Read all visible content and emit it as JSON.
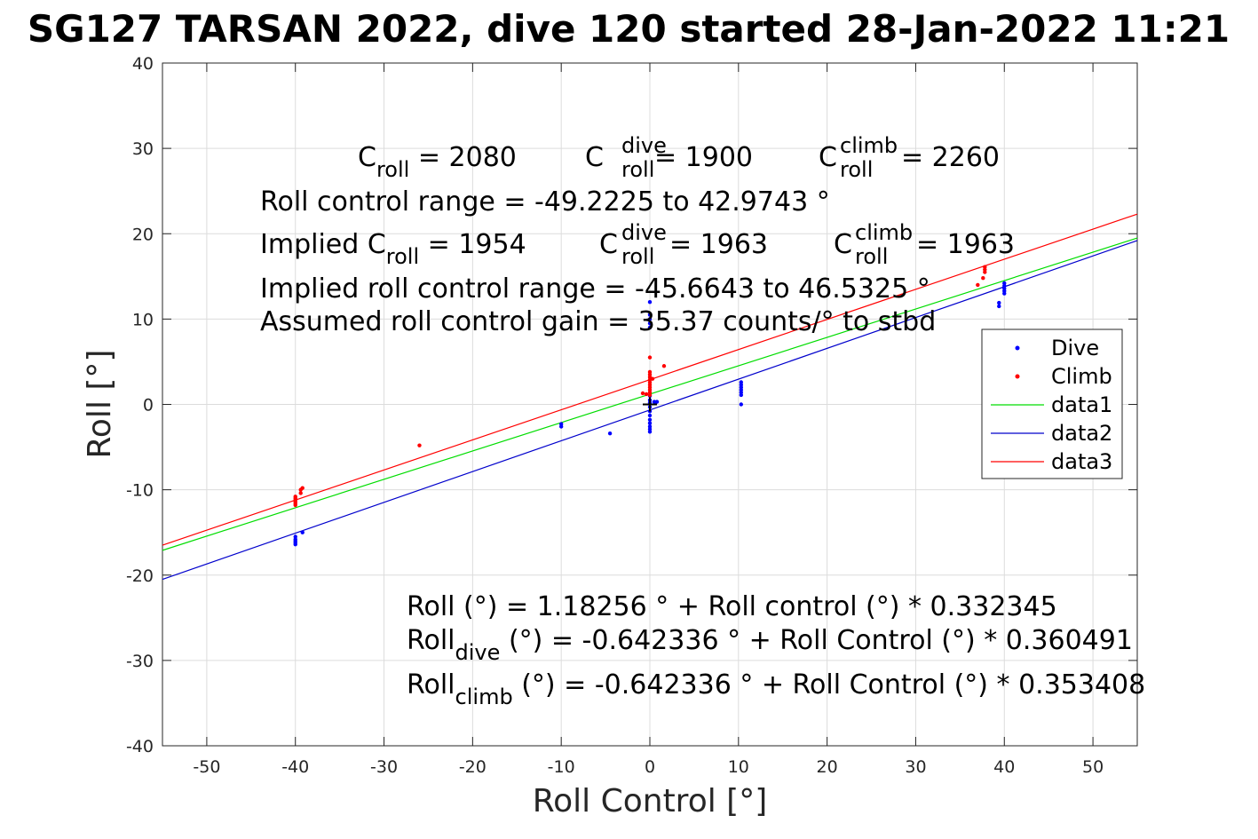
{
  "chart_data": {
    "type": "scatter",
    "title": "SG127 TARSAN 2022, dive 120 started 28-Jan-2022 11:21",
    "xlabel": "Roll Control [°]",
    "ylabel": "Roll [°]",
    "xlim": [
      -55,
      55
    ],
    "ylim": [
      -40,
      40
    ],
    "xticks": [
      "-50",
      "-40",
      "-30",
      "-20",
      "-10",
      "0",
      "10",
      "20",
      "30",
      "40",
      "50"
    ],
    "yticks": [
      "-40",
      "-30",
      "-20",
      "-10",
      "0",
      "10",
      "20",
      "30",
      "40"
    ],
    "grid": true,
    "legend_position": "right",
    "series": [
      {
        "name": "Dive",
        "kind": "points",
        "color": "#0000ff",
        "points": [
          [
            -40,
            -15.5
          ],
          [
            -40,
            -15.8
          ],
          [
            -40,
            -16.0
          ],
          [
            -40,
            -16.2
          ],
          [
            -40,
            -16.4
          ],
          [
            -39.2,
            -15.0
          ],
          [
            -10,
            -2.3
          ],
          [
            -10,
            -2.6
          ],
          [
            -4.5,
            -3.4
          ],
          [
            0,
            12.0
          ],
          [
            0,
            10.5
          ],
          [
            0,
            10.0
          ],
          [
            0,
            9.5
          ],
          [
            0,
            9.0
          ],
          [
            0,
            1.0
          ],
          [
            0,
            0.5
          ],
          [
            0,
            0.2
          ],
          [
            0,
            -0.3
          ],
          [
            0,
            -0.8
          ],
          [
            0,
            -1.3
          ],
          [
            0,
            -1.8
          ],
          [
            0,
            -2.2
          ],
          [
            0,
            -2.6
          ],
          [
            0,
            -2.9
          ],
          [
            0,
            -3.2
          ],
          [
            0.5,
            0.3
          ],
          [
            0.8,
            0.3
          ],
          [
            10.3,
            2.6
          ],
          [
            10.3,
            2.3
          ],
          [
            10.3,
            2.0
          ],
          [
            10.3,
            1.7
          ],
          [
            10.3,
            1.4
          ],
          [
            10.3,
            1.1
          ],
          [
            10.3,
            0.0
          ],
          [
            39.4,
            11.9
          ],
          [
            39.4,
            11.5
          ],
          [
            40,
            14.2
          ],
          [
            40,
            13.9
          ],
          [
            40,
            13.6
          ],
          [
            40,
            13.3
          ],
          [
            40,
            13.0
          ]
        ]
      },
      {
        "name": "Climb",
        "kind": "points",
        "color": "#ff0000",
        "points": [
          [
            -40,
            -10.8
          ],
          [
            -40,
            -11.0
          ],
          [
            -40,
            -11.2
          ],
          [
            -40,
            -11.4
          ],
          [
            -40,
            -11.6
          ],
          [
            -40,
            -11.8
          ],
          [
            -39.4,
            -10.0
          ],
          [
            -39.4,
            -10.4
          ],
          [
            -39.2,
            -9.8
          ],
          [
            -26,
            -4.8
          ],
          [
            -0.8,
            1.3
          ],
          [
            -0.4,
            1.2
          ],
          [
            0,
            5.5
          ],
          [
            0,
            3.8
          ],
          [
            0,
            3.5
          ],
          [
            0,
            3.2
          ],
          [
            0,
            2.9
          ],
          [
            0,
            2.6
          ],
          [
            0,
            2.3
          ],
          [
            0,
            2.0
          ],
          [
            0,
            1.7
          ],
          [
            0,
            1.4
          ],
          [
            0,
            1.1
          ],
          [
            0.3,
            3.0
          ],
          [
            1.6,
            4.5
          ],
          [
            37,
            14.0
          ],
          [
            37.6,
            14.8
          ],
          [
            37.8,
            15.5
          ],
          [
            37.8,
            15.8
          ],
          [
            37.8,
            16.1
          ]
        ]
      },
      {
        "name": "data1",
        "kind": "line",
        "color": "#00dd00",
        "points": [
          [
            -55,
            -17.1
          ],
          [
            55,
            19.5
          ]
        ]
      },
      {
        "name": "data2",
        "kind": "line",
        "color": "#0000cc",
        "points": [
          [
            -55,
            -20.5
          ],
          [
            55,
            19.2
          ]
        ]
      },
      {
        "name": "data3",
        "kind": "line",
        "color": "#ff0000",
        "points": [
          [
            -55,
            -16.5
          ],
          [
            55,
            22.3
          ]
        ]
      }
    ],
    "marker": {
      "type": "plus",
      "point": [
        0,
        0
      ],
      "color": "#000000"
    }
  },
  "annotations": {
    "line1": {
      "a_main": "C",
      "a_sub": "roll",
      "a_rest": " = 2080",
      "b_main": "C",
      "b_sup": "dive",
      "b_sub": "roll",
      "b_rest": " = 1900",
      "c_main": "C",
      "c_sup": "climb",
      "c_sub": "roll",
      "c_rest": " = 2260"
    },
    "line2": "Roll control range = -49.2225 to 42.9743 °",
    "line3": {
      "a_main": "Implied C",
      "a_sub": "roll",
      "a_rest": " = 1954",
      "b_main": "C",
      "b_sup": "dive",
      "b_sub": "roll",
      "b_rest": " = 1963",
      "c_main": "C",
      "c_sup": "climb",
      "c_sub": "roll",
      "c_rest": " = 1963"
    },
    "line4": "Implied roll control range = -45.6643 to 46.5325 °",
    "line5": "Assumed roll control gain = 35.37 counts/° to stbd",
    "eq1": "Roll (°) = 1.18256 ° + Roll control (°) * 0.332345",
    "eq2": {
      "main": "Roll",
      "sub": "dive",
      "rest": " (°) = -0.642336 ° + Roll Control (°) * 0.360491"
    },
    "eq3": {
      "main": "Roll",
      "sub": "climb",
      "rest": " (°) = -0.642336 ° + Roll Control (°) * 0.353408"
    }
  }
}
